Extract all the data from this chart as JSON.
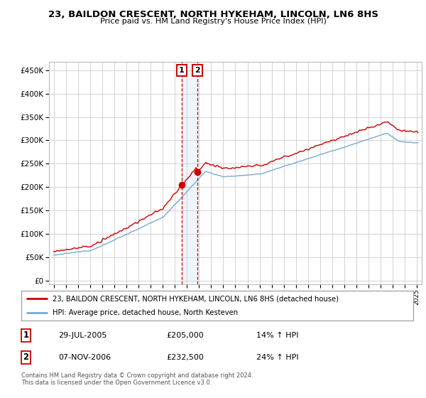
{
  "title": "23, BAILDON CRESCENT, NORTH HYKEHAM, LINCOLN, LN6 8HS",
  "subtitle": "Price paid vs. HM Land Registry's House Price Index (HPI)",
  "legend_line1": "23, BAILDON CRESCENT, NORTH HYKEHAM, LINCOLN, LN6 8HS (detached house)",
  "legend_line2": "HPI: Average price, detached house, North Kesteven",
  "sale1_date": "29-JUL-2005",
  "sale1_price": "£205,000",
  "sale1_hpi": "14% ↑ HPI",
  "sale1_year": 2005.57,
  "sale1_value": 205000,
  "sale2_date": "07-NOV-2006",
  "sale2_price": "£232,500",
  "sale2_hpi": "24% ↑ HPI",
  "sale2_year": 2006.85,
  "sale2_value": 232500,
  "hpi_color": "#7aaad0",
  "price_color": "#cc0000",
  "vline_color": "#cc0000",
  "span_color": "#c0d8ee",
  "background_color": "#ffffff",
  "grid_color": "#cccccc",
  "yticks": [
    0,
    50000,
    100000,
    150000,
    200000,
    250000,
    300000,
    350000,
    400000,
    450000
  ],
  "ylim": [
    -8000,
    468000
  ],
  "xlim_min": 1994.6,
  "xlim_max": 2025.4,
  "copyright_text": "Contains HM Land Registry data © Crown copyright and database right 2024.\nThis data is licensed under the Open Government Licence v3.0."
}
